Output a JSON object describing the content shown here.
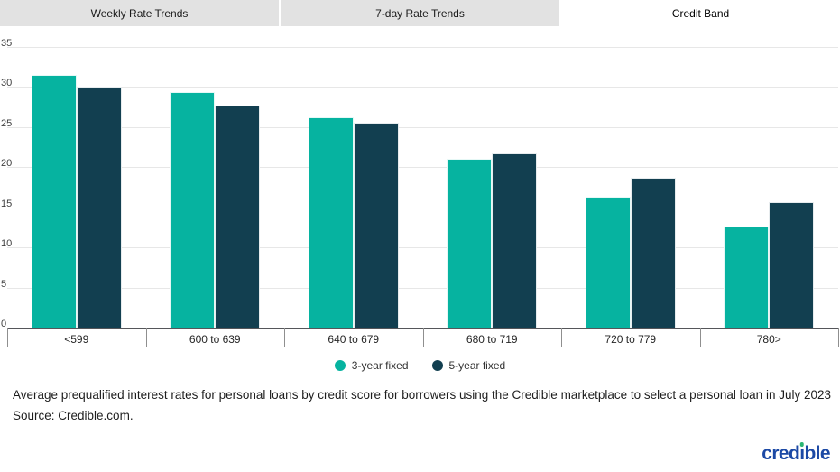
{
  "tabs": [
    {
      "label": "Weekly Rate Trends",
      "active": false
    },
    {
      "label": "7-day Rate Trends",
      "active": false
    },
    {
      "label": "Credit Band",
      "active": true
    }
  ],
  "chart_data": {
    "type": "bar",
    "categories": [
      "<599",
      "600 to 639",
      "640 to 679",
      "680 to 719",
      "720 to 779",
      "780>"
    ],
    "series": [
      {
        "name": "3-year fixed",
        "color": "#06b3a0",
        "values": [
          31.5,
          29.4,
          26.2,
          21.0,
          16.3,
          12.6
        ]
      },
      {
        "name": "5-year fixed",
        "color": "#123f50",
        "values": [
          30.0,
          27.7,
          25.6,
          21.7,
          18.7,
          15.7
        ]
      }
    ],
    "title": "",
    "xlabel": "",
    "ylabel": "",
    "ylim": [
      0,
      35
    ],
    "ytick_step": 5,
    "yticks": [
      0,
      5,
      10,
      15,
      20,
      25,
      30,
      35
    ],
    "grid": true,
    "legend_position": "bottom"
  },
  "caption": {
    "line1": "Average prequalified interest rates for personal loans by credit score for borrowers using the Credible marketplace to select a personal loan in July 2023.",
    "source_prefix": "Source: ",
    "source_link": "Credible.com",
    "source_suffix": "."
  },
  "logo": {
    "part1": "cred",
    "dotless_i": "ı",
    "part2": "ble",
    "color": "#1b49a5",
    "dot_color": "#2bb673"
  },
  "colors": {
    "tab_inactive": "#e2e2e2",
    "gridline": "#e7e7e7",
    "axis": "#55565a"
  }
}
